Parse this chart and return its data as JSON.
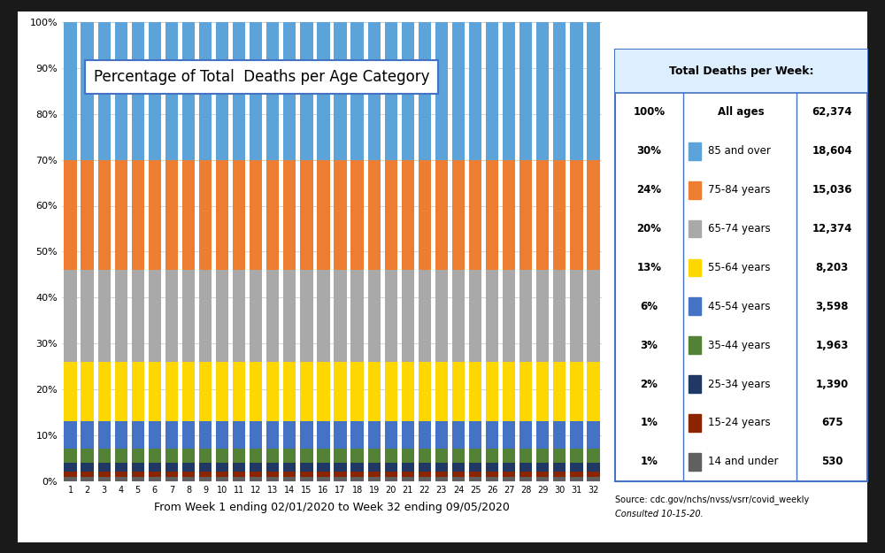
{
  "title": "Percentage of Total  Deaths per Age Category",
  "xlabel": "From Week 1 ending 02/01/2020 to Week 32 ending 09/05/2020",
  "weeks": [
    1,
    2,
    3,
    4,
    5,
    6,
    7,
    8,
    9,
    10,
    11,
    12,
    13,
    14,
    15,
    16,
    17,
    18,
    19,
    20,
    21,
    22,
    23,
    24,
    25,
    26,
    27,
    28,
    29,
    30,
    31,
    32
  ],
  "categories": [
    "14 and under",
    "15-24 years",
    "25-34 years",
    "35-44 years",
    "45-54 years",
    "55-64 years",
    "65-74 years",
    "75-84 years",
    "85 and over"
  ],
  "colors": [
    "#606060",
    "#8B2500",
    "#1F3864",
    "#538135",
    "#4472C4",
    "#FFD700",
    "#A9A9A9",
    "#ED7D31",
    "#5BA3D9"
  ],
  "percentages": {
    "14 and under": [
      1,
      1,
      1,
      1,
      1,
      1,
      1,
      1,
      1,
      1,
      1,
      1,
      1,
      1,
      1,
      1,
      1,
      1,
      1,
      1,
      1,
      1,
      1,
      1,
      1,
      1,
      1,
      1,
      1,
      1,
      1,
      1
    ],
    "15-24 years": [
      1,
      1,
      1,
      1,
      1,
      1,
      1,
      1,
      1,
      1,
      1,
      1,
      1,
      1,
      1,
      1,
      1,
      1,
      1,
      1,
      1,
      1,
      1,
      1,
      1,
      1,
      1,
      1,
      1,
      1,
      1,
      1
    ],
    "25-34 years": [
      2,
      2,
      2,
      2,
      2,
      2,
      2,
      2,
      2,
      2,
      2,
      2,
      2,
      2,
      2,
      2,
      2,
      2,
      2,
      2,
      2,
      2,
      2,
      2,
      2,
      2,
      2,
      2,
      2,
      2,
      2,
      2
    ],
    "35-44 years": [
      3,
      3,
      3,
      3,
      3,
      3,
      3,
      3,
      3,
      3,
      3,
      3,
      3,
      3,
      3,
      3,
      3,
      3,
      3,
      3,
      3,
      3,
      3,
      3,
      3,
      3,
      3,
      3,
      3,
      3,
      3,
      3
    ],
    "45-54 years": [
      6,
      6,
      6,
      6,
      6,
      6,
      6,
      6,
      6,
      6,
      6,
      6,
      6,
      6,
      6,
      6,
      6,
      6,
      6,
      6,
      6,
      6,
      6,
      6,
      6,
      6,
      6,
      6,
      6,
      6,
      6,
      6
    ],
    "55-64 years": [
      13,
      13,
      13,
      13,
      13,
      13,
      13,
      13,
      13,
      13,
      13,
      13,
      13,
      13,
      13,
      13,
      13,
      13,
      13,
      13,
      13,
      13,
      13,
      13,
      13,
      13,
      13,
      13,
      13,
      13,
      13,
      13
    ],
    "65-74 years": [
      20,
      20,
      20,
      20,
      20,
      20,
      20,
      20,
      20,
      20,
      20,
      20,
      20,
      20,
      20,
      20,
      20,
      20,
      20,
      20,
      20,
      20,
      20,
      20,
      20,
      20,
      20,
      20,
      20,
      20,
      20,
      20
    ],
    "75-84 years": [
      24,
      24,
      24,
      24,
      24,
      24,
      24,
      24,
      24,
      24,
      24,
      24,
      24,
      24,
      24,
      24,
      24,
      24,
      24,
      24,
      24,
      24,
      24,
      24,
      24,
      24,
      24,
      24,
      24,
      24,
      24,
      24
    ],
    "85 and over": [
      30,
      30,
      30,
      30,
      30,
      30,
      30,
      30,
      30,
      30,
      30,
      30,
      30,
      30,
      30,
      30,
      30,
      30,
      30,
      30,
      30,
      30,
      30,
      30,
      30,
      30,
      30,
      30,
      30,
      30,
      30,
      30
    ]
  },
  "table_data": {
    "title": "Total Deaths per Week:",
    "rows": [
      [
        "100%",
        "All ages",
        "62,374"
      ],
      [
        "30%",
        "85 and over",
        "18,604"
      ],
      [
        "24%",
        "75-84 years",
        "15,036"
      ],
      [
        "20%",
        "65-74 years",
        "12,374"
      ],
      [
        "13%",
        "55-64 years",
        "8,203"
      ],
      [
        "6%",
        "45-54 years",
        "3,598"
      ],
      [
        "3%",
        "35-44 years",
        "1,963"
      ],
      [
        "2%",
        "25-34 years",
        "1,390"
      ],
      [
        "1%",
        "15-24 years",
        "675"
      ],
      [
        "1%",
        "14 and under",
        "530"
      ]
    ],
    "legend_colors": [
      "",
      "#5BA3D9",
      "#ED7D31",
      "#A9A9A9",
      "#FFD700",
      "#4472C4",
      "#538135",
      "#1F3864",
      "#8B2500",
      "#606060"
    ]
  },
  "source_text": "Source: cdc.gov/nchs/nvss/vsrr/covid_weekly",
  "consulted_text": "Consulted 10-15-20.",
  "outer_bg": "#1a1a1a",
  "inner_bg": "#FFFFFF",
  "ylim": [
    0,
    100
  ],
  "yticks": [
    0,
    10,
    20,
    30,
    40,
    50,
    60,
    70,
    80,
    90,
    100
  ]
}
